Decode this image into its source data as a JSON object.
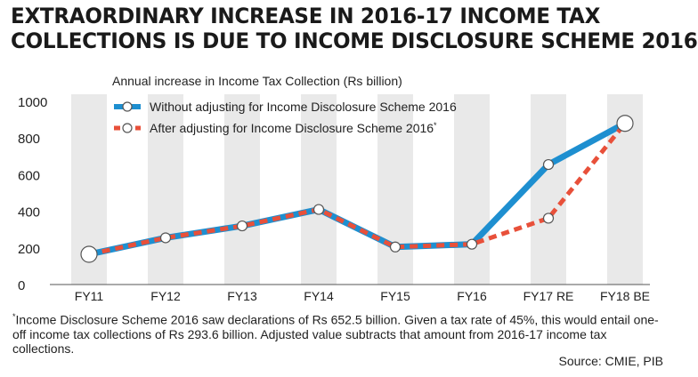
{
  "title_line1": "EXTRAORDINARY INCREASE IN 2016-17 INCOME TAX",
  "title_line2": "COLLECTIONS IS DUE TO INCOME DISCLOSURE SCHEME 2016",
  "footnote_marker": "*",
  "footnote_text": "Income Disclosure Scheme 2016 saw declarations of Rs 652.5 billion. Given a tax rate of 45%, this would entail one-off income tax collections of Rs 293.6 billion. Adjusted value subtracts that amount from 2016-17 income tax collections.",
  "source": "Source: CMIE, PIB",
  "colors": {
    "unadjusted": "#1e8fd0",
    "adjusted": "#e8503a",
    "band": "#e9e9e9"
  },
  "chart_data": {
    "type": "line",
    "title": "Annual increase in Income Tax Collection (Rs billion)",
    "categories": [
      "FY11",
      "FY12",
      "FY13",
      "FY14",
      "FY15",
      "FY16",
      "FY17 RE",
      "FY18 BE"
    ],
    "ylim": [
      0,
      1000
    ],
    "yticks": [
      0,
      200,
      400,
      600,
      800,
      1000
    ],
    "legend_position": "top-left",
    "series": [
      {
        "name": "Without adjusting for Income Discolosure Scheme 2016",
        "marker": "",
        "values": [
          165,
          255,
          320,
          410,
          205,
          220,
          655,
          880
        ]
      },
      {
        "name": "After adjusting for Income Disclosure Scheme 2016",
        "marker": "*",
        "values": [
          165,
          255,
          320,
          410,
          205,
          220,
          362,
          880
        ]
      }
    ]
  }
}
